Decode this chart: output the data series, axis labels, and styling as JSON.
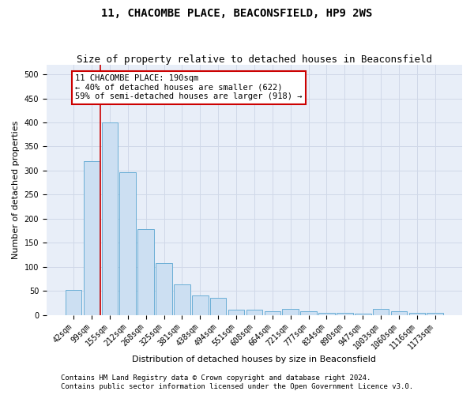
{
  "title": "11, CHACOMBE PLACE, BEACONSFIELD, HP9 2WS",
  "subtitle": "Size of property relative to detached houses in Beaconsfield",
  "xlabel": "Distribution of detached houses by size in Beaconsfield",
  "ylabel": "Number of detached properties",
  "footer_line1": "Contains HM Land Registry data © Crown copyright and database right 2024.",
  "footer_line2": "Contains public sector information licensed under the Open Government Licence v3.0.",
  "bar_labels": [
    "42sqm",
    "99sqm",
    "155sqm",
    "212sqm",
    "268sqm",
    "325sqm",
    "381sqm",
    "438sqm",
    "494sqm",
    "551sqm",
    "608sqm",
    "664sqm",
    "721sqm",
    "777sqm",
    "834sqm",
    "890sqm",
    "947sqm",
    "1003sqm",
    "1060sqm",
    "1116sqm",
    "1173sqm"
  ],
  "bar_values": [
    52,
    320,
    400,
    297,
    178,
    108,
    63,
    40,
    35,
    10,
    10,
    7,
    12,
    8,
    5,
    5,
    3,
    12,
    8,
    5,
    5
  ],
  "bar_color": "#ccdff2",
  "bar_edge_color": "#6aaed6",
  "grid_color": "#d0d8e8",
  "background_color": "#e8eef8",
  "annotation_text": "11 CHACOMBE PLACE: 190sqm\n← 40% of detached houses are smaller (622)\n59% of semi-detached houses are larger (918) →",
  "annotation_box_color": "#ffffff",
  "annotation_box_edge_color": "#cc0000",
  "vline_color": "#cc0000",
  "vline_x": 2,
  "ylim": [
    0,
    520
  ],
  "yticks": [
    0,
    50,
    100,
    150,
    200,
    250,
    300,
    350,
    400,
    450,
    500
  ],
  "title_fontsize": 10,
  "subtitle_fontsize": 9,
  "axis_label_fontsize": 8,
  "tick_fontsize": 7,
  "annotation_fontsize": 7.5,
  "footer_fontsize": 6.5
}
